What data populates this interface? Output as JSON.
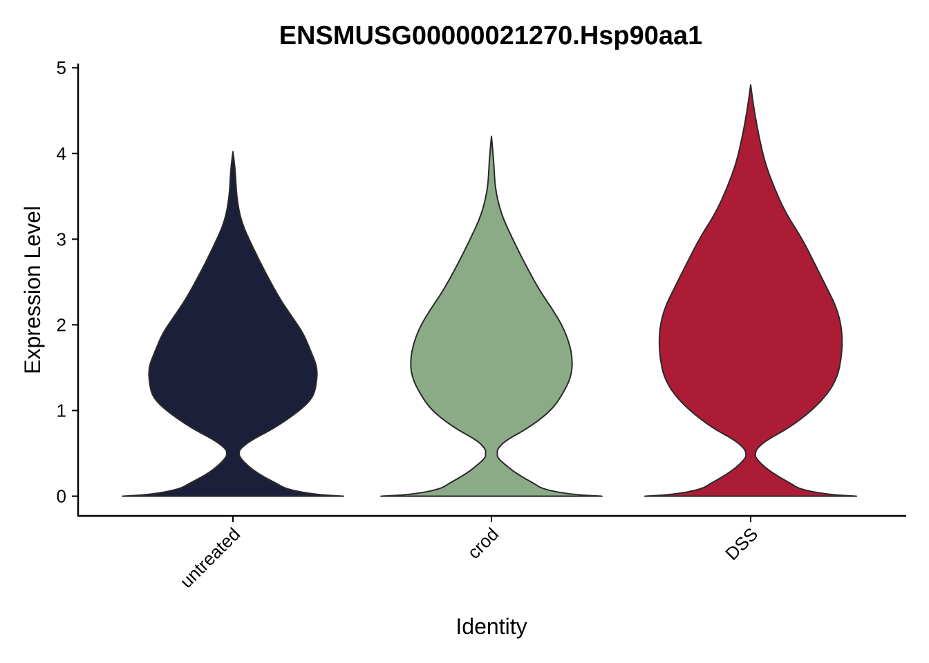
{
  "chart_data": {
    "type": "violin",
    "title": "ENSMUSG00000021270.Hsp90aa1",
    "xlabel": "Identity",
    "ylabel": "Expression Level",
    "ylim": [
      -0.23,
      5.05
    ],
    "yticks": [
      "0",
      "1",
      "2",
      "3",
      "4",
      "5"
    ],
    "ytick_values": [
      0,
      1,
      2,
      3,
      4,
      5
    ],
    "categories": [
      "untreated",
      "crod",
      "DSS"
    ],
    "grid": false,
    "legend": "none",
    "series": [
      {
        "category": "untreated",
        "color": "#1c1f3a",
        "max": 4.02,
        "profile": [
          [
            0.0,
            0.94
          ],
          [
            0.02,
            0.7
          ],
          [
            0.08,
            0.46
          ],
          [
            0.15,
            0.37
          ],
          [
            0.25,
            0.23
          ],
          [
            0.35,
            0.13
          ],
          [
            0.45,
            0.06
          ],
          [
            0.5,
            0.05
          ],
          [
            0.55,
            0.06
          ],
          [
            0.65,
            0.15
          ],
          [
            0.8,
            0.36
          ],
          [
            1.0,
            0.57
          ],
          [
            1.15,
            0.68
          ],
          [
            1.3,
            0.71
          ],
          [
            1.5,
            0.72
          ],
          [
            1.7,
            0.66
          ],
          [
            1.9,
            0.6
          ],
          [
            2.1,
            0.5
          ],
          [
            2.3,
            0.4
          ],
          [
            2.6,
            0.28
          ],
          [
            2.9,
            0.17
          ],
          [
            3.2,
            0.07
          ],
          [
            3.5,
            0.03
          ],
          [
            3.8,
            0.02
          ],
          [
            4.02,
            0.0
          ]
        ]
      },
      {
        "category": "crod",
        "color": "#8bab87",
        "max": 4.2,
        "profile": [
          [
            0.0,
            0.94
          ],
          [
            0.02,
            0.68
          ],
          [
            0.08,
            0.44
          ],
          [
            0.15,
            0.36
          ],
          [
            0.25,
            0.23
          ],
          [
            0.35,
            0.13
          ],
          [
            0.45,
            0.05
          ],
          [
            0.5,
            0.05
          ],
          [
            0.55,
            0.05
          ],
          [
            0.65,
            0.12
          ],
          [
            0.8,
            0.32
          ],
          [
            1.0,
            0.51
          ],
          [
            1.2,
            0.61
          ],
          [
            1.4,
            0.68
          ],
          [
            1.6,
            0.69
          ],
          [
            1.8,
            0.66
          ],
          [
            2.0,
            0.6
          ],
          [
            2.2,
            0.51
          ],
          [
            2.4,
            0.41
          ],
          [
            2.7,
            0.29
          ],
          [
            3.0,
            0.18
          ],
          [
            3.3,
            0.08
          ],
          [
            3.6,
            0.03
          ],
          [
            3.9,
            0.02
          ],
          [
            4.2,
            0.0
          ]
        ]
      },
      {
        "category": "DSS",
        "color": "#ad1c35",
        "max": 4.8,
        "profile": [
          [
            0.0,
            0.9
          ],
          [
            0.02,
            0.66
          ],
          [
            0.08,
            0.42
          ],
          [
            0.15,
            0.34
          ],
          [
            0.25,
            0.21
          ],
          [
            0.35,
            0.11
          ],
          [
            0.45,
            0.04
          ],
          [
            0.5,
            0.04
          ],
          [
            0.55,
            0.05
          ],
          [
            0.65,
            0.13
          ],
          [
            0.8,
            0.33
          ],
          [
            1.0,
            0.52
          ],
          [
            1.2,
            0.66
          ],
          [
            1.4,
            0.74
          ],
          [
            1.6,
            0.77
          ],
          [
            1.8,
            0.78
          ],
          [
            2.0,
            0.77
          ],
          [
            2.2,
            0.73
          ],
          [
            2.4,
            0.66
          ],
          [
            2.7,
            0.55
          ],
          [
            3.0,
            0.44
          ],
          [
            3.3,
            0.3
          ],
          [
            3.6,
            0.2
          ],
          [
            3.9,
            0.12
          ],
          [
            4.2,
            0.07
          ],
          [
            4.5,
            0.03
          ],
          [
            4.8,
            0.0
          ]
        ]
      }
    ]
  }
}
